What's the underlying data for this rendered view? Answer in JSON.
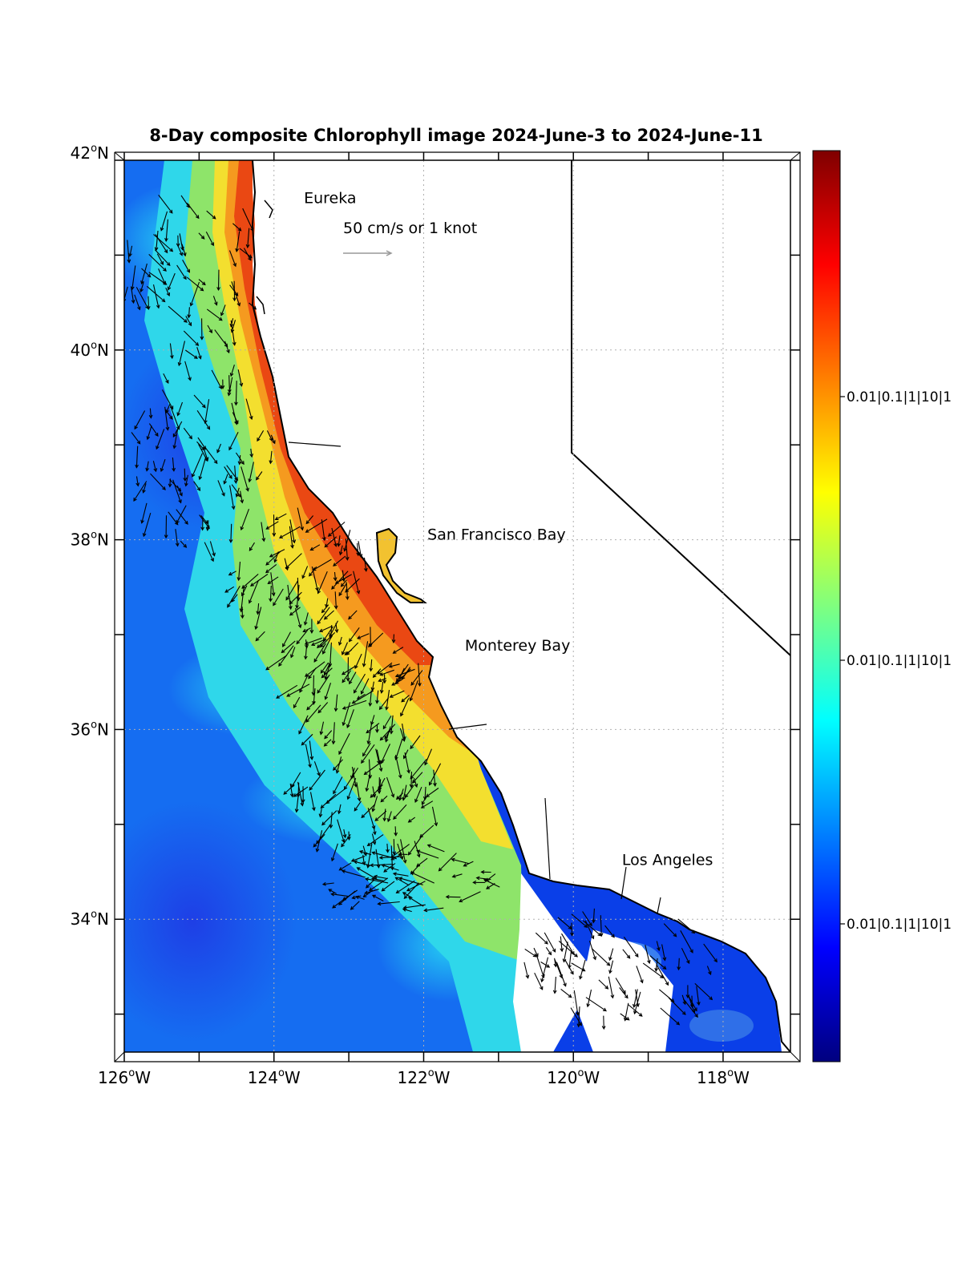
{
  "title": "8-Day composite Chlorophyll image 2024-June-3 to 2024-June-11",
  "lat_ticks": [
    {
      "value": 42,
      "deg": "42",
      "hemi": "N"
    },
    {
      "value": 40,
      "deg": "40",
      "hemi": "N"
    },
    {
      "value": 38,
      "deg": "38",
      "hemi": "N"
    },
    {
      "value": 36,
      "deg": "36",
      "hemi": "N"
    },
    {
      "value": 34,
      "deg": "34",
      "hemi": "N"
    }
  ],
  "lon_ticks": [
    {
      "value": -126,
      "deg": "126",
      "hemi": "W"
    },
    {
      "value": -124,
      "deg": "124",
      "hemi": "W"
    },
    {
      "value": -122,
      "deg": "122",
      "hemi": "W"
    },
    {
      "value": -120,
      "deg": "120",
      "hemi": "W"
    },
    {
      "value": -118,
      "deg": "118",
      "hemi": "W"
    }
  ],
  "extent": {
    "lon_min": -126,
    "lon_max": -117.1,
    "lat_min": 32.6,
    "lat_max": 42
  },
  "places": [
    {
      "name": "Eureka",
      "lon": -123.6,
      "lat": 41.55
    },
    {
      "name": "San Francisco Bay",
      "lon": -121.95,
      "lat": 38.0
    },
    {
      "name": "Monterey Bay",
      "lon": -121.45,
      "lat": 36.83
    },
    {
      "name": "Los Angeles",
      "lon": -119.35,
      "lat": 34.57
    }
  ],
  "scale_arrow": {
    "label": "50 cm/s or 1 knot",
    "lon": -123.15,
    "lat": 41.3
  },
  "colorbar": {
    "tick_labels": [
      "0.01|0.1|1|10|1",
      "0.01|0.1|1|10|1",
      "0.01|0.1|1|10|1"
    ],
    "colors": [
      "#00007f",
      "#0000ff",
      "#007fff",
      "#00ffff",
      "#7fff7f",
      "#ffff00",
      "#ff7f00",
      "#ff0000",
      "#7f0000"
    ]
  },
  "colors": {
    "land": "#ffffff",
    "coastline": "#000000",
    "boundary_line": "#000000",
    "grid": "#b0b0b0",
    "vector": "#000000",
    "scale_arrow": "#999999"
  }
}
